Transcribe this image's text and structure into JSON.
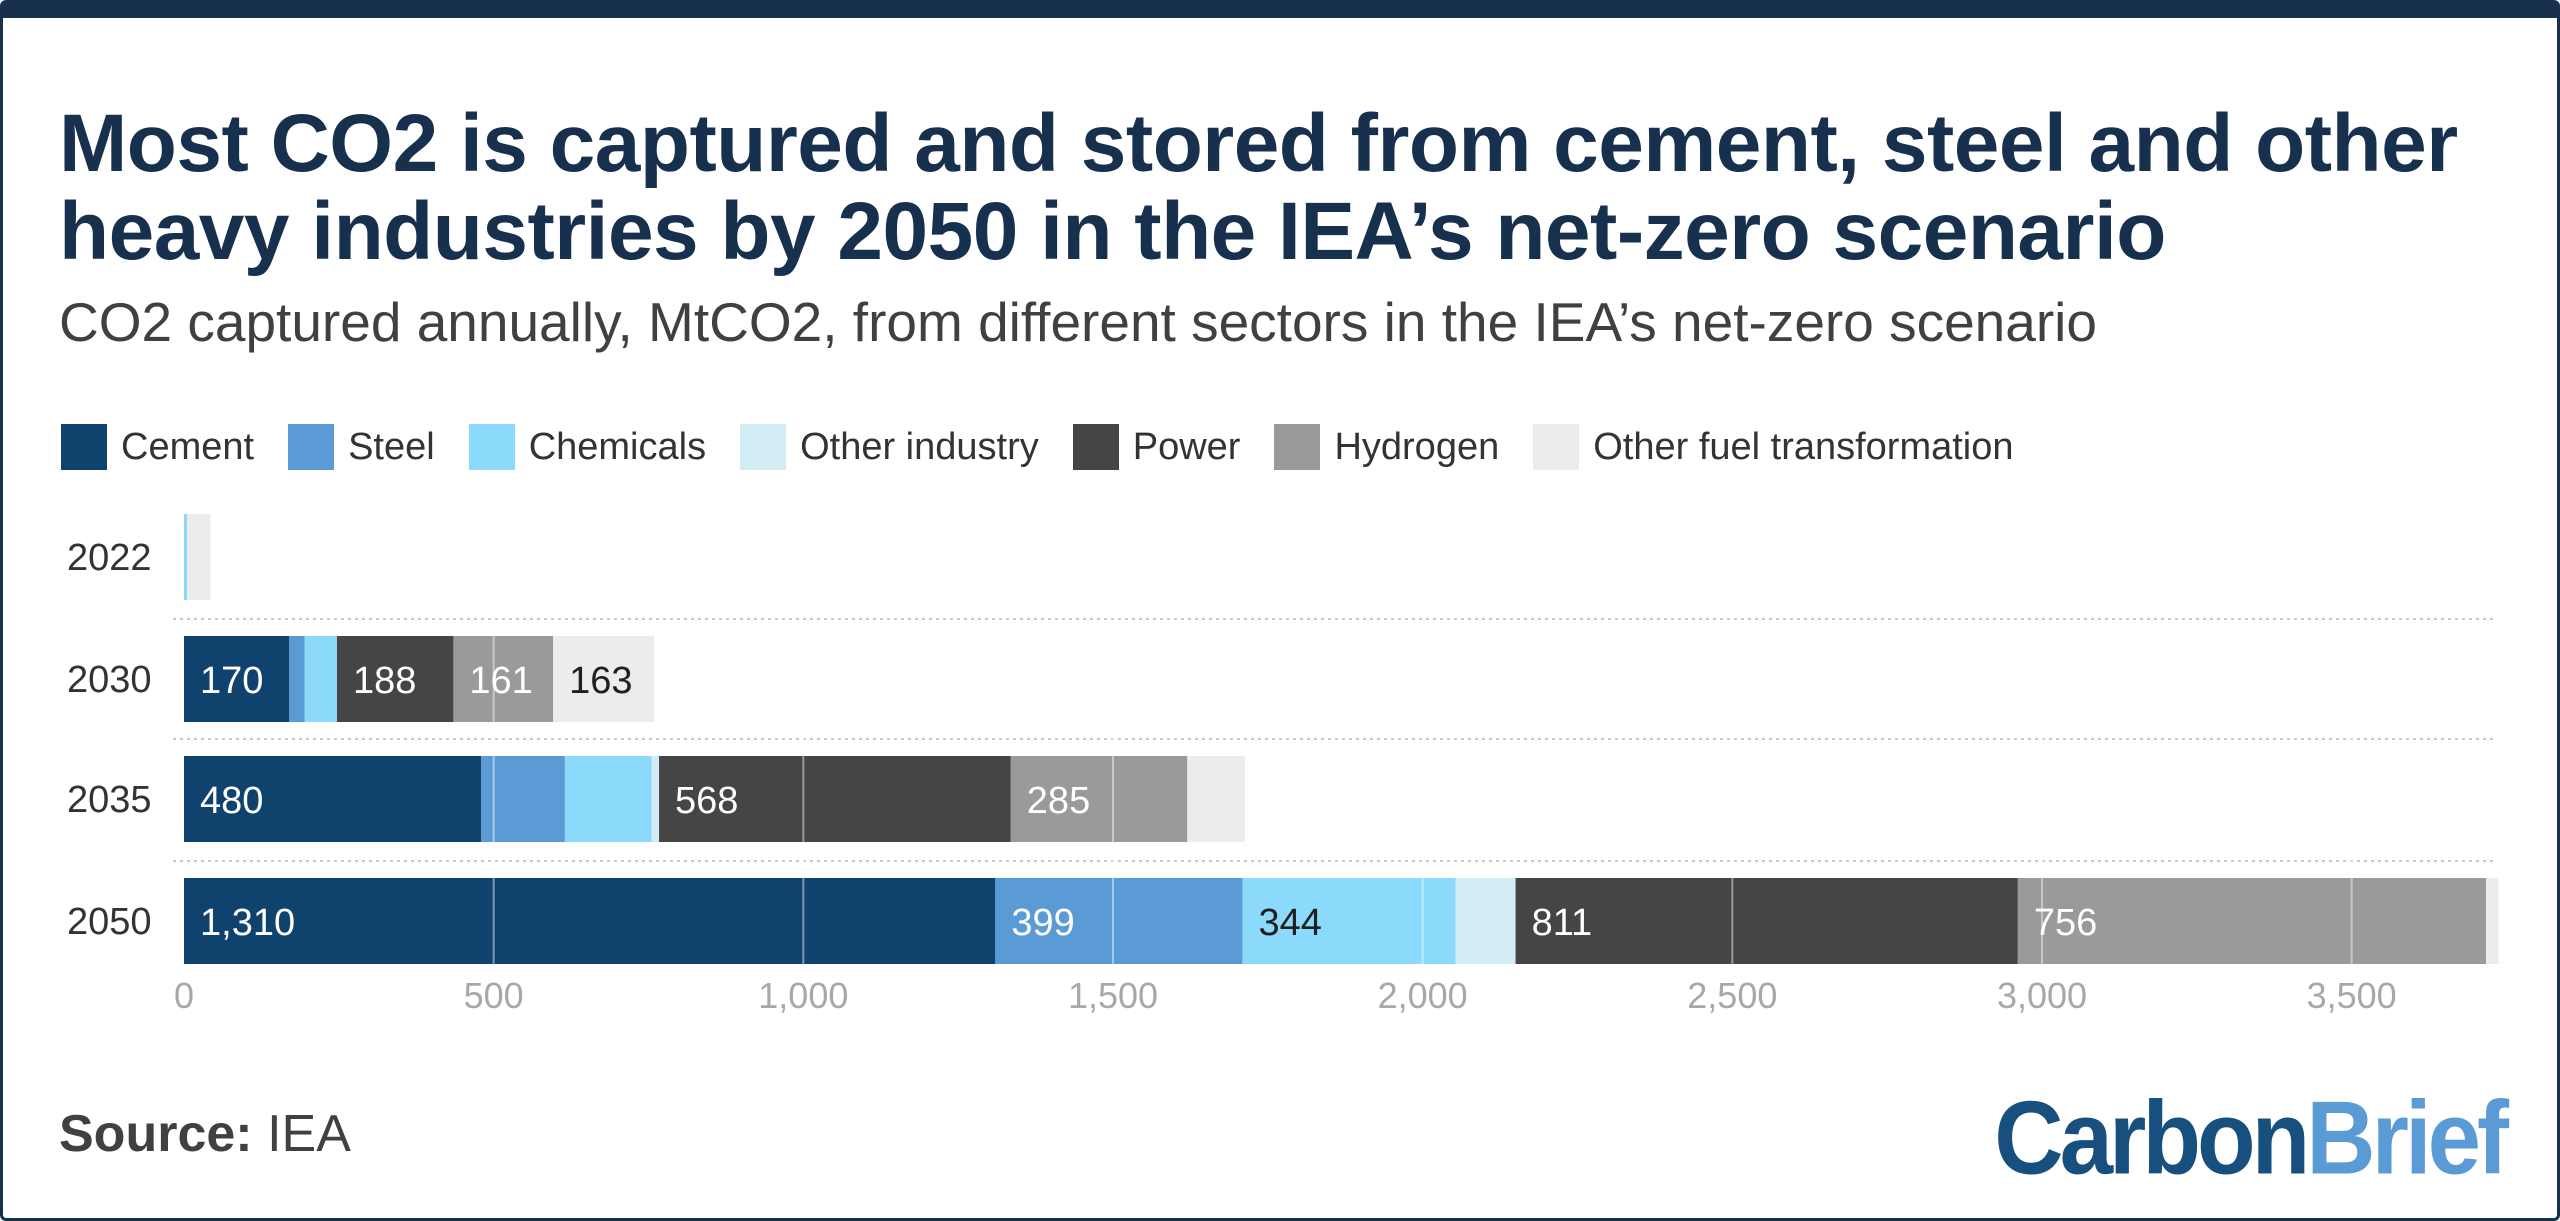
{
  "title": "Most CO2 is captured and stored from cement, steel and other heavy industries by 2050 in the IEA’s net-zero scenario",
  "subtitle": "CO2 captured annually, MtCO2, from different sectors in the IEA’s net-zero scenario",
  "source": {
    "label": "Source:",
    "value": "IEA"
  },
  "brand": {
    "part1": "Carbon",
    "part2": "Brief"
  },
  "colors": {
    "cement": "#0f436e",
    "steel": "#5b9bd5",
    "chemicals": "#8bd9fb",
    "other_industry": "#d1ecf3",
    "power": "#454545",
    "hydrogen": "#9a9a9a",
    "other_fuel": "#ececec",
    "axis_text": "#a8a8a8",
    "gridline": "#cfcfcf"
  },
  "chart_data": {
    "type": "bar",
    "orientation": "horizontal",
    "stacked": true,
    "categories": [
      "2022",
      "2030",
      "2035",
      "2050"
    ],
    "series": [
      {
        "name": "Cement",
        "color": "#0f436e",
        "values": [
          0,
          170,
          480,
          1310
        ],
        "labels": [
          "",
          "170",
          "480",
          "1,310"
        ]
      },
      {
        "name": "Steel",
        "color": "#5b9bd5",
        "values": [
          0,
          25,
          135,
          399
        ],
        "labels": [
          "",
          "",
          "",
          "399"
        ]
      },
      {
        "name": "Chemicals",
        "color": "#8bd9fb",
        "values": [
          5,
          52,
          140,
          344
        ],
        "labels": [
          "",
          "",
          "",
          "344"
        ]
      },
      {
        "name": "Other industry",
        "color": "#d1ecf3",
        "values": [
          0,
          0,
          12,
          97
        ],
        "labels": [
          "",
          "",
          "",
          ""
        ]
      },
      {
        "name": "Power",
        "color": "#454545",
        "values": [
          0,
          188,
          568,
          811
        ],
        "labels": [
          "",
          "188",
          "568",
          "811"
        ]
      },
      {
        "name": "Hydrogen",
        "color": "#9a9a9a",
        "values": [
          0,
          161,
          285,
          756
        ],
        "labels": [
          "",
          "161",
          "285",
          ""
        ]
      },
      {
        "name": "Other fuel transformation",
        "color": "#ececec",
        "values": [
          38,
          163,
          93,
          20
        ],
        "labels": [
          "",
          "163",
          "",
          ""
        ]
      }
    ],
    "annotations": [
      {
        "category": "2050",
        "series": "Hydrogen",
        "text": "756"
      }
    ],
    "xlim": [
      0,
      3750
    ],
    "xticks": [
      0,
      500,
      1000,
      1500,
      2000,
      2500,
      3000,
      3500
    ],
    "xtick_labels": [
      "0",
      "500",
      "1,000",
      "1,500",
      "2,000",
      "2,500",
      "3,000",
      "3,500"
    ],
    "grid": true,
    "legend_position": "top-left"
  }
}
